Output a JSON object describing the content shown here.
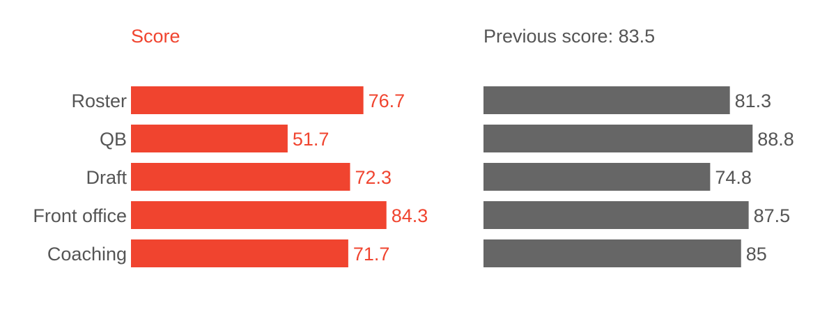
{
  "chart_data": [
    {
      "type": "bar",
      "orientation": "horizontal",
      "title": "Score",
      "categories": [
        "Roster",
        "QB",
        "Draft",
        "Front office",
        "Coaching"
      ],
      "values": [
        76.7,
        51.7,
        72.3,
        84.3,
        71.7
      ],
      "xlim": [
        0,
        100
      ],
      "grid": false,
      "color": "#f0442f"
    },
    {
      "type": "bar",
      "orientation": "horizontal",
      "title": "Previous score: 83.5",
      "categories": [
        "Roster",
        "QB",
        "Draft",
        "Front office",
        "Coaching"
      ],
      "values": [
        81.3,
        88.8,
        74.8,
        87.5,
        85
      ],
      "xlim": [
        0,
        100
      ],
      "grid": false,
      "color": "#666666"
    }
  ],
  "colors": {
    "label_text": "#555555",
    "score": "#f0442f",
    "previous": "#666666"
  }
}
